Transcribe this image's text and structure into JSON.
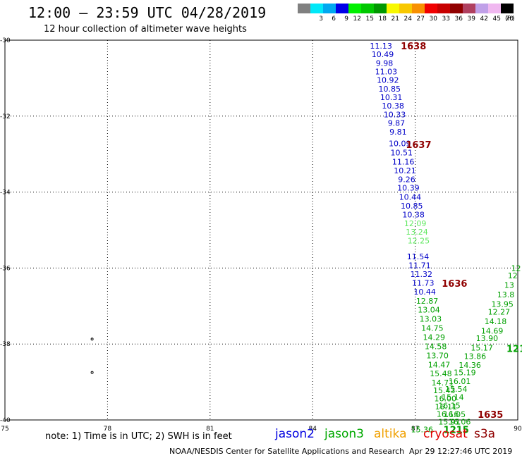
{
  "header": {
    "title": "12:00 – 23:59 UTC 04/28/2019",
    "subtitle": "12 hour collection of altimeter wave heights",
    "units": "(ft)"
  },
  "legend": [
    {
      "label": "",
      "color": "#808080"
    },
    {
      "label": "3",
      "color": "#00e8f8"
    },
    {
      "label": "6",
      "color": "#00a8f0"
    },
    {
      "label": "9",
      "color": "#0000e8"
    },
    {
      "label": "12",
      "color": "#00f000"
    },
    {
      "label": "15",
      "color": "#00c800"
    },
    {
      "label": "18",
      "color": "#009800"
    },
    {
      "label": "21",
      "color": "#f8f800"
    },
    {
      "label": "24",
      "color": "#f8c800"
    },
    {
      "label": "27",
      "color": "#f89000"
    },
    {
      "label": "30",
      "color": "#f00000"
    },
    {
      "label": "33",
      "color": "#c80000"
    },
    {
      "label": "36",
      "color": "#900000"
    },
    {
      "label": "39",
      "color": "#b04060"
    },
    {
      "label": "42",
      "color": "#c0a0e8"
    },
    {
      "label": "45",
      "color": "#f0b8f0"
    },
    {
      "label": "70",
      "color": "#000000"
    }
  ],
  "footer": {
    "note": "note:  1) Time is in UTC; 2) SWH is in feet",
    "satellites": [
      {
        "name": "jason2",
        "color": "#0000e0"
      },
      {
        "name": "jason3",
        "color": "#00a800"
      },
      {
        "name": "altika",
        "color": "#f0a000"
      },
      {
        "name": "cryosat",
        "color": "#e00000"
      },
      {
        "name": "s3a",
        "color": "#900000"
      }
    ],
    "credit": "NOAA/NESDIS Center for Satellite Applications and Research",
    "timestamp": "Apr 29 12:27:46 UTC 2019"
  },
  "chart_data": {
    "type": "scatter",
    "xlim": [
      75,
      90
    ],
    "ylim": [
      -40,
      -30
    ],
    "x_ticks": [
      "75",
      "78",
      "81",
      "84",
      "87",
      "90"
    ],
    "y_ticks": [
      "-30",
      "-32",
      "-34",
      "-36",
      "-38",
      "-40"
    ],
    "grid": true,
    "series": [
      {
        "name": "jason2",
        "color": "#0000c8",
        "points": [
          {
            "lon": 86.0,
            "lat": -30.15,
            "swh": "11.13"
          },
          {
            "lon": 86.05,
            "lat": -30.37,
            "swh": "10.49"
          },
          {
            "lon": 86.1,
            "lat": -30.6,
            "swh": "9.98"
          },
          {
            "lon": 86.15,
            "lat": -30.83,
            "swh": "11.03"
          },
          {
            "lon": 86.2,
            "lat": -31.05,
            "swh": "10.92"
          },
          {
            "lon": 86.25,
            "lat": -31.28,
            "swh": "10.85"
          },
          {
            "lon": 86.3,
            "lat": -31.5,
            "swh": "10.31"
          },
          {
            "lon": 86.35,
            "lat": -31.73,
            "swh": "10.38"
          },
          {
            "lon": 86.4,
            "lat": -31.96,
            "swh": "10.33"
          },
          {
            "lon": 86.45,
            "lat": -32.18,
            "swh": "9.87"
          },
          {
            "lon": 86.5,
            "lat": -32.41,
            "swh": "9.81"
          },
          {
            "lon": 86.55,
            "lat": -32.72,
            "swh": "10.09"
          },
          {
            "lon": 86.6,
            "lat": -32.96,
            "swh": "10.51"
          },
          {
            "lon": 86.65,
            "lat": -33.2,
            "swh": "11.16"
          },
          {
            "lon": 86.7,
            "lat": -33.43,
            "swh": "10.21"
          },
          {
            "lon": 86.75,
            "lat": -33.66,
            "swh": "9.26"
          },
          {
            "lon": 86.8,
            "lat": -33.89,
            "swh": "10.39"
          },
          {
            "lon": 86.85,
            "lat": -34.13,
            "swh": "10.44"
          },
          {
            "lon": 86.9,
            "lat": -34.36,
            "swh": "10.85"
          },
          {
            "lon": 86.95,
            "lat": -34.59,
            "swh": "10.38"
          },
          {
            "lon": 87.08,
            "lat": -35.7,
            "swh": "11.54"
          },
          {
            "lon": 87.13,
            "lat": -35.93,
            "swh": "11.71"
          },
          {
            "lon": 87.18,
            "lat": -36.16,
            "swh": "11.32"
          },
          {
            "lon": 87.23,
            "lat": -36.39,
            "swh": "11.73"
          },
          {
            "lon": 87.28,
            "lat": -36.62,
            "swh": "10.44"
          }
        ]
      },
      {
        "name": "jason3",
        "color": "#00a000",
        "points": [
          {
            "lon": 87.35,
            "lat": -36.86,
            "swh": "12.87"
          },
          {
            "lon": 87.4,
            "lat": -37.1,
            "swh": "13.04"
          },
          {
            "lon": 87.45,
            "lat": -37.34,
            "swh": "13.03"
          },
          {
            "lon": 87.5,
            "lat": -37.58,
            "swh": "14.75"
          },
          {
            "lon": 87.55,
            "lat": -37.82,
            "swh": "14.29"
          },
          {
            "lon": 87.6,
            "lat": -38.06,
            "swh": "14.58"
          },
          {
            "lon": 87.65,
            "lat": -38.3,
            "swh": "13.70"
          },
          {
            "lon": 87.7,
            "lat": -38.54,
            "swh": "14.47"
          },
          {
            "lon": 87.75,
            "lat": -38.78,
            "swh": "15.48"
          },
          {
            "lon": 87.8,
            "lat": -39.02,
            "swh": "14.71"
          },
          {
            "lon": 87.85,
            "lat": -39.22,
            "swh": "15.43"
          },
          {
            "lon": 87.88,
            "lat": -39.43,
            "swh": "16.00"
          },
          {
            "lon": 87.9,
            "lat": -39.65,
            "swh": "16.11"
          },
          {
            "lon": 87.95,
            "lat": -39.84,
            "swh": "16.16"
          },
          {
            "lon": 88.0,
            "lat": -40.05,
            "swh": "15.91"
          },
          {
            "lon": 87.2,
            "lat": -40.25,
            "swh": "15.36"
          },
          {
            "lon": 89.95,
            "lat": -36.0,
            "swh": "12"
          },
          {
            "lon": 89.85,
            "lat": -36.2,
            "swh": "12"
          },
          {
            "lon": 89.75,
            "lat": -36.45,
            "swh": "13"
          },
          {
            "lon": 89.65,
            "lat": -36.7,
            "swh": "13.8"
          },
          {
            "lon": 89.55,
            "lat": -36.95,
            "swh": "13.95"
          },
          {
            "lon": 89.45,
            "lat": -37.15,
            "swh": "12.27"
          },
          {
            "lon": 89.35,
            "lat": -37.4,
            "swh": "14.18"
          },
          {
            "lon": 89.25,
            "lat": -37.65,
            "swh": "14.69"
          },
          {
            "lon": 89.1,
            "lat": -37.85,
            "swh": "13.90"
          },
          {
            "lon": 88.95,
            "lat": -38.1,
            "swh": "15.17"
          },
          {
            "lon": 88.75,
            "lat": -38.32,
            "swh": "13.86"
          },
          {
            "lon": 88.6,
            "lat": -38.55,
            "swh": "14.36"
          },
          {
            "lon": 88.45,
            "lat": -38.75,
            "swh": "15.19"
          },
          {
            "lon": 88.3,
            "lat": -38.98,
            "swh": "16.01"
          },
          {
            "lon": 88.2,
            "lat": -39.18,
            "swh": "15.54"
          },
          {
            "lon": 88.1,
            "lat": -39.4,
            "swh": "15.14"
          },
          {
            "lon": 88.0,
            "lat": -39.62,
            "swh": "16.15"
          },
          {
            "lon": 88.15,
            "lat": -39.85,
            "swh": "16.05"
          },
          {
            "lon": 88.3,
            "lat": -40.05,
            "swh": "16.06"
          }
        ]
      },
      {
        "name": "jason3-light",
        "color": "#60e860",
        "points": [
          {
            "lon": 87.0,
            "lat": -34.82,
            "swh": "12.09"
          },
          {
            "lon": 87.05,
            "lat": -35.05,
            "swh": "13.24"
          },
          {
            "lon": 87.1,
            "lat": -35.28,
            "swh": "12.25"
          }
        ]
      }
    ],
    "time_labels": [
      {
        "text": "1638",
        "lon": 86.95,
        "lat": -30.15,
        "color": "#900000"
      },
      {
        "text": "1637",
        "lon": 87.1,
        "lat": -32.75,
        "color": "#900000"
      },
      {
        "text": "1636",
        "lon": 88.15,
        "lat": -36.4,
        "color": "#900000"
      },
      {
        "text": "1635",
        "lon": 89.2,
        "lat": -39.85,
        "color": "#900000"
      },
      {
        "text": "1215",
        "lon": 88.2,
        "lat": -40.25,
        "color": "#00a000"
      },
      {
        "text": "121",
        "lon": 89.95,
        "lat": -38.12,
        "color": "#00a000"
      }
    ],
    "land_dots": [
      {
        "lon": 77.55,
        "lat": -37.87
      },
      {
        "lon": 77.55,
        "lat": -38.75
      }
    ]
  }
}
